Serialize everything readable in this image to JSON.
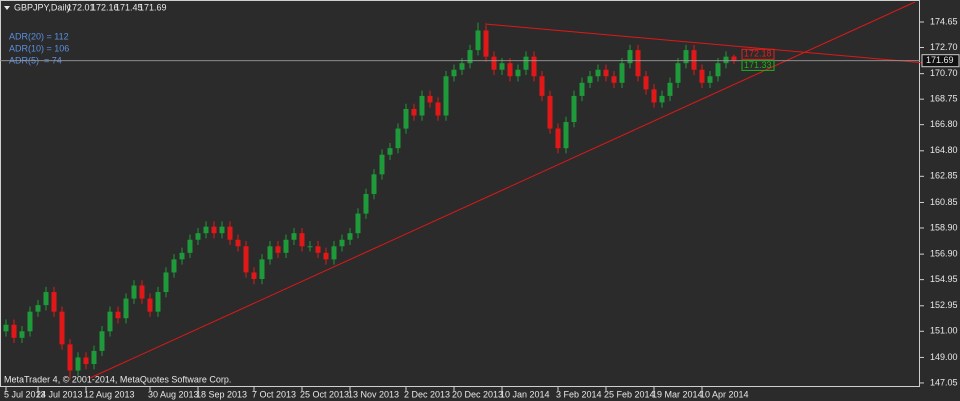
{
  "chart_data": {
    "type": "candlestick",
    "title": "GBPJPY,Daily",
    "footer": "MetaTrader 4, © 2001-2014, MetaQuotes Software Corp.",
    "indicators": [
      "ADR(20) = 112",
      "ADR(10) = 106",
      "ADR(5)  = 74"
    ],
    "annotations": [
      {
        "text": "172.18",
        "color": "#e02020"
      },
      {
        "text": "171.33",
        "color": "#20b020"
      }
    ],
    "up_color": "#1f9a3a",
    "down_color": "#e01818",
    "categories": [
      "5 Jul 2013",
      null,
      null,
      null,
      "24 Jul 2013",
      null,
      null,
      null,
      null,
      null,
      "12 Aug 2013",
      null,
      null,
      null,
      null,
      null,
      null,
      null,
      "30 Aug 2013",
      null,
      null,
      null,
      null,
      null,
      "18 Sep 2013",
      null,
      null,
      null,
      null,
      null,
      null,
      "7 Oct 2013",
      null,
      null,
      null,
      null,
      null,
      "25 Oct 2013",
      null,
      null,
      null,
      null,
      null,
      "13 Nov 2013",
      null,
      null,
      null,
      null,
      null,
      null,
      "2 Dec 2013",
      null,
      null,
      null,
      null,
      null,
      "20 Dec 2013",
      null,
      null,
      null,
      null,
      null,
      "10 Jan 2014",
      null,
      null,
      null,
      null,
      null,
      null,
      "3 Feb 2014",
      null,
      null,
      null,
      null,
      null,
      "25 Feb 2014",
      null,
      null,
      null,
      null,
      null,
      "19 Mar 2014",
      null,
      null,
      null,
      null,
      null,
      "10 Apr 2014",
      null,
      null,
      null,
      null
    ],
    "open": [
      151.0,
      151.5,
      150.5,
      151.0,
      152.5,
      153.0,
      154.0,
      152.5,
      150.0,
      148.0,
      149.0,
      148.5,
      149.5,
      151.0,
      152.5,
      152.0,
      153.5,
      154.5,
      153.5,
      152.5,
      154.0,
      155.5,
      156.5,
      157.0,
      158.0,
      158.5,
      159.0,
      158.5,
      159.0,
      158.0,
      157.5,
      155.5,
      155.0,
      156.5,
      157.5,
      157.0,
      158.0,
      158.5,
      157.5,
      157.5,
      157.0,
      156.5,
      157.5,
      158.0,
      158.5,
      160.0,
      161.5,
      163.0,
      164.5,
      165.0,
      166.5,
      168.0,
      167.5,
      169.0,
      168.5,
      167.5,
      170.5,
      171.0,
      171.5,
      172.5,
      174.0,
      172.0,
      171.0,
      171.5,
      170.5,
      171.0,
      172.0,
      170.5,
      169.0,
      166.5,
      165.0,
      167.0,
      169.0,
      170.0,
      170.5,
      171.0,
      170.5,
      170.0,
      171.5,
      172.5,
      170.5,
      169.5,
      168.5,
      169.0,
      170.0,
      171.5,
      172.5,
      171.0,
      170.0,
      170.5,
      171.5,
      172.01
    ],
    "high": [
      151.9,
      151.9,
      151.4,
      152.9,
      153.4,
      154.4,
      154.4,
      152.9,
      150.4,
      149.4,
      149.4,
      149.9,
      151.4,
      152.9,
      152.9,
      153.9,
      154.9,
      154.9,
      153.9,
      154.4,
      155.9,
      156.9,
      157.4,
      158.4,
      158.9,
      159.4,
      159.4,
      159.4,
      159.4,
      158.4,
      157.9,
      155.9,
      156.9,
      157.9,
      157.9,
      158.4,
      158.9,
      158.9,
      157.9,
      157.9,
      157.4,
      157.9,
      158.4,
      158.9,
      160.4,
      161.9,
      163.4,
      164.9,
      165.4,
      166.9,
      168.4,
      168.4,
      169.4,
      169.4,
      168.9,
      170.9,
      171.4,
      171.9,
      172.9,
      174.6,
      174.4,
      172.4,
      171.9,
      171.9,
      171.4,
      172.4,
      172.4,
      170.9,
      169.4,
      166.9,
      167.4,
      169.4,
      170.4,
      170.9,
      171.4,
      171.4,
      170.9,
      171.9,
      172.9,
      172.9,
      170.9,
      169.9,
      169.4,
      170.4,
      171.9,
      172.9,
      172.9,
      171.4,
      170.9,
      171.9,
      172.4,
      172.16
    ],
    "low": [
      150.6,
      150.1,
      150.1,
      150.6,
      152.1,
      152.6,
      152.1,
      149.6,
      147.3,
      147.6,
      148.1,
      148.1,
      149.1,
      150.6,
      151.6,
      151.6,
      153.1,
      153.1,
      152.1,
      152.1,
      153.6,
      155.1,
      156.1,
      156.6,
      157.6,
      158.1,
      158.1,
      158.1,
      157.6,
      157.1,
      155.1,
      154.6,
      154.6,
      156.1,
      156.6,
      156.6,
      157.6,
      157.1,
      157.1,
      156.6,
      156.1,
      156.1,
      157.1,
      157.6,
      158.1,
      159.6,
      161.1,
      162.6,
      164.1,
      164.6,
      166.1,
      167.1,
      167.1,
      168.1,
      167.1,
      167.1,
      170.1,
      170.6,
      171.1,
      172.1,
      171.6,
      170.6,
      170.6,
      170.1,
      170.1,
      170.6,
      170.1,
      168.6,
      166.1,
      164.6,
      164.6,
      166.6,
      168.6,
      169.6,
      170.1,
      170.1,
      169.6,
      169.6,
      171.1,
      170.1,
      169.1,
      168.1,
      168.1,
      168.6,
      169.6,
      171.1,
      170.6,
      169.6,
      169.6,
      170.1,
      171.1,
      171.45
    ],
    "close": [
      151.5,
      150.5,
      151.0,
      152.5,
      153.0,
      154.0,
      152.5,
      150.0,
      148.0,
      149.0,
      148.5,
      149.5,
      151.0,
      152.5,
      152.0,
      153.5,
      154.5,
      153.5,
      152.5,
      154.0,
      155.5,
      156.5,
      157.0,
      158.0,
      158.5,
      159.0,
      158.5,
      159.0,
      158.0,
      157.5,
      155.5,
      155.0,
      156.5,
      157.5,
      157.0,
      158.0,
      158.5,
      157.5,
      157.5,
      157.0,
      156.5,
      157.5,
      158.0,
      158.5,
      160.0,
      161.5,
      163.0,
      164.5,
      165.0,
      166.5,
      168.0,
      167.5,
      169.0,
      168.5,
      167.5,
      170.5,
      171.0,
      171.5,
      172.5,
      174.0,
      172.0,
      171.0,
      171.5,
      170.5,
      171.0,
      172.0,
      170.5,
      169.0,
      166.5,
      165.0,
      167.0,
      169.0,
      170.0,
      170.5,
      171.0,
      170.5,
      170.0,
      171.5,
      172.5,
      170.5,
      169.5,
      168.5,
      169.0,
      170.0,
      171.5,
      172.5,
      171.0,
      170.0,
      170.5,
      171.5,
      172.0,
      171.69
    ],
    "ylim": [
      146.74,
      175.72
    ],
    "yticks": [
      {
        "value": 147.05,
        "label": "147.05"
      },
      {
        "value": 149,
        "label": "149.00"
      },
      {
        "value": 151,
        "label": "151.00"
      },
      {
        "value": 152.95,
        "label": "152.95"
      },
      {
        "value": 154.95,
        "label": "154.95"
      },
      {
        "value": 156.9,
        "label": "156.90"
      },
      {
        "value": 158.9,
        "label": "158.90"
      },
      {
        "value": 160.85,
        "label": "160.85"
      },
      {
        "value": 162.85,
        "label": "162.85"
      },
      {
        "value": 164.8,
        "label": "164.80"
      },
      {
        "value": 166.8,
        "label": "166.80"
      },
      {
        "value": 168.75,
        "label": "168.75"
      },
      {
        "value": 170.7,
        "label": "170.70"
      },
      {
        "value": 172.7,
        "label": "172.70"
      },
      {
        "value": 174.65,
        "label": "174.65"
      }
    ]
  }
}
